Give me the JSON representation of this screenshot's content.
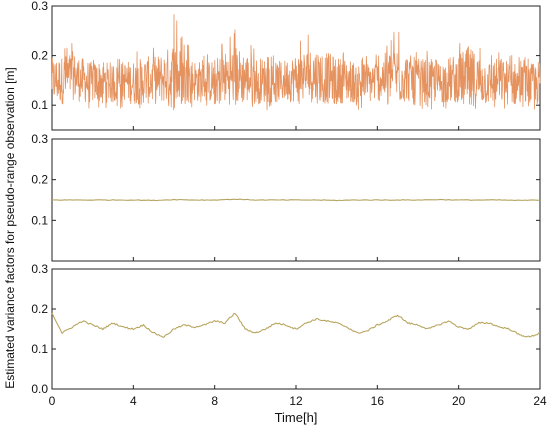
{
  "chart_data": [
    {
      "type": "line",
      "panel": "top",
      "title": "",
      "xlabel": "",
      "ylabel": "",
      "xlim": [
        0,
        24
      ],
      "ylim": [
        0.05,
        0.3
      ],
      "yticks": [
        "0.1",
        "0.2",
        "0.3"
      ],
      "series": [
        {
          "color": "#E5925E",
          "x": [
            0,
            0.5,
            1,
            1.5,
            2,
            2.5,
            3,
            3.5,
            4,
            4.5,
            5,
            5.5,
            6,
            6.5,
            7,
            7.5,
            8,
            8.5,
            9,
            9.5,
            10,
            10.5,
            11,
            11.5,
            12,
            12.5,
            13,
            13.5,
            14,
            14.5,
            15,
            15.5,
            16,
            16.5,
            17,
            17.5,
            18,
            18.5,
            19,
            19.5,
            20,
            20.5,
            21,
            21.5,
            22,
            22.5,
            23,
            23.5,
            24
          ],
          "mean": [
            0.15,
            0.15,
            0.16,
            0.15,
            0.145,
            0.15,
            0.14,
            0.15,
            0.145,
            0.15,
            0.15,
            0.155,
            0.16,
            0.155,
            0.15,
            0.145,
            0.15,
            0.155,
            0.16,
            0.155,
            0.15,
            0.15,
            0.145,
            0.15,
            0.155,
            0.16,
            0.16,
            0.155,
            0.15,
            0.15,
            0.145,
            0.145,
            0.15,
            0.16,
            0.16,
            0.155,
            0.15,
            0.15,
            0.145,
            0.15,
            0.155,
            0.15,
            0.15,
            0.145,
            0.15,
            0.145,
            0.14,
            0.14,
            0.145
          ],
          "max": [
            0.21,
            0.22,
            0.23,
            0.21,
            0.2,
            0.21,
            0.19,
            0.2,
            0.21,
            0.22,
            0.22,
            0.23,
            0.29,
            0.23,
            0.21,
            0.2,
            0.21,
            0.24,
            0.26,
            0.24,
            0.22,
            0.21,
            0.2,
            0.21,
            0.23,
            0.24,
            0.25,
            0.24,
            0.22,
            0.21,
            0.2,
            0.2,
            0.21,
            0.23,
            0.26,
            0.23,
            0.21,
            0.21,
            0.2,
            0.22,
            0.23,
            0.28,
            0.23,
            0.21,
            0.22,
            0.21,
            0.2,
            0.2,
            0.21
          ],
          "min": [
            0.09,
            0.09,
            0.1,
            0.09,
            0.09,
            0.095,
            0.09,
            0.095,
            0.09,
            0.095,
            0.09,
            0.095,
            0.1,
            0.1,
            0.095,
            0.09,
            0.095,
            0.1,
            0.1,
            0.1,
            0.095,
            0.09,
            0.09,
            0.095,
            0.1,
            0.1,
            0.1,
            0.1,
            0.095,
            0.09,
            0.09,
            0.09,
            0.095,
            0.1,
            0.1,
            0.1,
            0.095,
            0.09,
            0.09,
            0.095,
            0.1,
            0.095,
            0.095,
            0.09,
            0.095,
            0.09,
            0.085,
            0.085,
            0.09
          ]
        }
      ]
    },
    {
      "type": "line",
      "panel": "middle",
      "title": "",
      "xlabel": "",
      "ylabel": "",
      "xlim": [
        0,
        24
      ],
      "ylim": [
        0,
        0.3
      ],
      "yticks": [
        "0.1",
        "0.2",
        "0.3"
      ],
      "series": [
        {
          "color": "#B5A35F",
          "x": [
            0,
            1,
            2,
            3,
            4,
            5,
            6,
            7,
            8,
            9,
            10,
            11,
            12,
            13,
            14,
            15,
            16,
            17,
            18,
            19,
            20,
            21,
            22,
            23,
            24
          ],
          "y": [
            0.15,
            0.15,
            0.15,
            0.15,
            0.15,
            0.149,
            0.151,
            0.15,
            0.15,
            0.152,
            0.15,
            0.15,
            0.15,
            0.15,
            0.149,
            0.15,
            0.15,
            0.15,
            0.15,
            0.151,
            0.15,
            0.15,
            0.15,
            0.149,
            0.15
          ]
        }
      ]
    },
    {
      "type": "line",
      "panel": "bottom",
      "title": "",
      "xlabel": "Time[h]",
      "ylabel": "",
      "xlim": [
        0,
        24
      ],
      "ylim": [
        0,
        0.3
      ],
      "yticks": [
        "0.0",
        "0.1",
        "0.2",
        "0.3"
      ],
      "xticks": [
        "0",
        "4",
        "8",
        "12",
        "16",
        "20",
        "24"
      ],
      "series": [
        {
          "color": "#B8A660",
          "x": [
            0,
            0.5,
            1,
            1.5,
            2,
            2.5,
            3,
            3.5,
            4,
            4.5,
            5,
            5.5,
            6,
            6.5,
            7,
            7.5,
            8,
            8.5,
            9,
            9.5,
            10,
            10.5,
            11,
            11.5,
            12,
            12.5,
            13,
            13.5,
            14,
            14.5,
            15,
            15.5,
            16,
            16.5,
            17,
            17.5,
            18,
            18.5,
            19,
            19.5,
            20,
            20.5,
            21,
            21.5,
            22,
            22.5,
            23,
            23.5,
            24
          ],
          "y": [
            0.19,
            0.14,
            0.155,
            0.17,
            0.16,
            0.15,
            0.165,
            0.155,
            0.15,
            0.16,
            0.14,
            0.13,
            0.15,
            0.16,
            0.155,
            0.16,
            0.17,
            0.165,
            0.19,
            0.15,
            0.14,
            0.15,
            0.165,
            0.16,
            0.15,
            0.165,
            0.175,
            0.17,
            0.165,
            0.155,
            0.14,
            0.145,
            0.16,
            0.17,
            0.185,
            0.165,
            0.16,
            0.15,
            0.16,
            0.17,
            0.155,
            0.15,
            0.165,
            0.165,
            0.155,
            0.15,
            0.135,
            0.13,
            0.14
          ]
        }
      ]
    }
  ],
  "shared_ylabel": "Estimated variance factors for pseudo-range observation [m]"
}
